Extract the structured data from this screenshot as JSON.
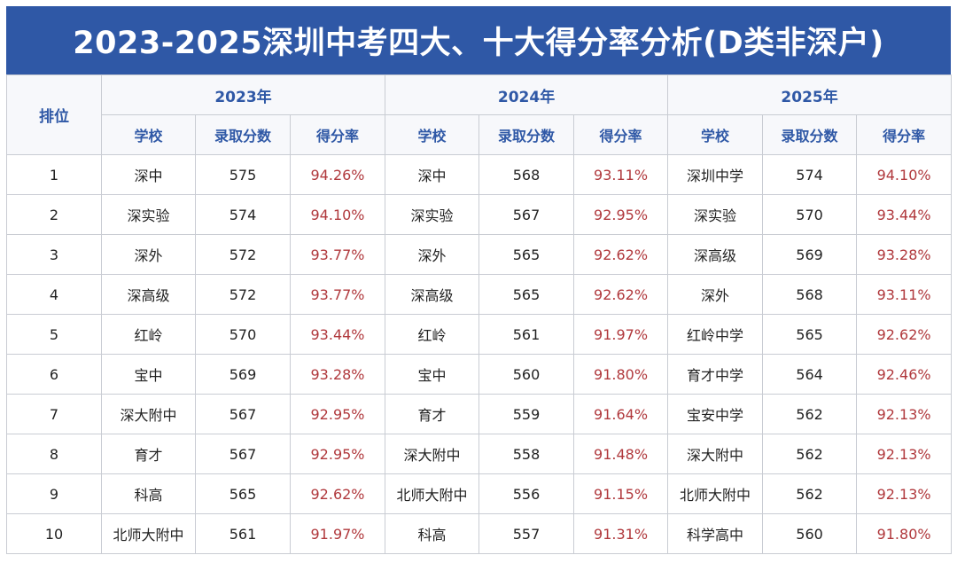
{
  "title": "2023-2025深圳中考四大、十大得分率分析(D类非深户)",
  "rank_header": "排位",
  "years": [
    "2023年",
    "2024年",
    "2025年"
  ],
  "sub_headers": [
    "学校",
    "录取分数",
    "得分率"
  ],
  "rows": [
    {
      "rank": "1",
      "y2023": {
        "school": "深中",
        "score": "575",
        "rate": "94.26%"
      },
      "y2024": {
        "school": "深中",
        "score": "568",
        "rate": "93.11%"
      },
      "y2025": {
        "school": "深圳中学",
        "score": "574",
        "rate": "94.10%"
      }
    },
    {
      "rank": "2",
      "y2023": {
        "school": "深实验",
        "score": "574",
        "rate": "94.10%"
      },
      "y2024": {
        "school": "深实验",
        "score": "567",
        "rate": "92.95%"
      },
      "y2025": {
        "school": "深实验",
        "score": "570",
        "rate": "93.44%"
      }
    },
    {
      "rank": "3",
      "y2023": {
        "school": "深外",
        "score": "572",
        "rate": "93.77%"
      },
      "y2024": {
        "school": "深外",
        "score": "565",
        "rate": "92.62%"
      },
      "y2025": {
        "school": "深高级",
        "score": "569",
        "rate": "93.28%"
      }
    },
    {
      "rank": "4",
      "y2023": {
        "school": "深高级",
        "score": "572",
        "rate": "93.77%"
      },
      "y2024": {
        "school": "深高级",
        "score": "565",
        "rate": "92.62%"
      },
      "y2025": {
        "school": "深外",
        "score": "568",
        "rate": "93.11%"
      }
    },
    {
      "rank": "5",
      "y2023": {
        "school": "红岭",
        "score": "570",
        "rate": "93.44%"
      },
      "y2024": {
        "school": "红岭",
        "score": "561",
        "rate": "91.97%"
      },
      "y2025": {
        "school": "红岭中学",
        "score": "565",
        "rate": "92.62%"
      }
    },
    {
      "rank": "6",
      "y2023": {
        "school": "宝中",
        "score": "569",
        "rate": "93.28%"
      },
      "y2024": {
        "school": "宝中",
        "score": "560",
        "rate": "91.80%"
      },
      "y2025": {
        "school": "育才中学",
        "score": "564",
        "rate": "92.46%"
      }
    },
    {
      "rank": "7",
      "y2023": {
        "school": "深大附中",
        "score": "567",
        "rate": "92.95%"
      },
      "y2024": {
        "school": "育才",
        "score": "559",
        "rate": "91.64%"
      },
      "y2025": {
        "school": "宝安中学",
        "score": "562",
        "rate": "92.13%"
      }
    },
    {
      "rank": "8",
      "y2023": {
        "school": "育才",
        "score": "567",
        "rate": "92.95%"
      },
      "y2024": {
        "school": "深大附中",
        "score": "558",
        "rate": "91.48%"
      },
      "y2025": {
        "school": "深大附中",
        "score": "562",
        "rate": "92.13%"
      }
    },
    {
      "rank": "9",
      "y2023": {
        "school": "科高",
        "score": "565",
        "rate": "92.62%"
      },
      "y2024": {
        "school": "北师大附中",
        "score": "556",
        "rate": "91.15%"
      },
      "y2025": {
        "school": "北师大附中",
        "score": "562",
        "rate": "92.13%"
      }
    },
    {
      "rank": "10",
      "y2023": {
        "school": "北师大附中",
        "score": "561",
        "rate": "91.97%"
      },
      "y2024": {
        "school": "科高",
        "score": "557",
        "rate": "91.31%"
      },
      "y2025": {
        "school": "科学高中",
        "score": "560",
        "rate": "91.80%"
      }
    }
  ],
  "colors": {
    "header_blue": "#2f58a6",
    "rate_red": "#b0383c",
    "border": "#c9ccd3"
  }
}
